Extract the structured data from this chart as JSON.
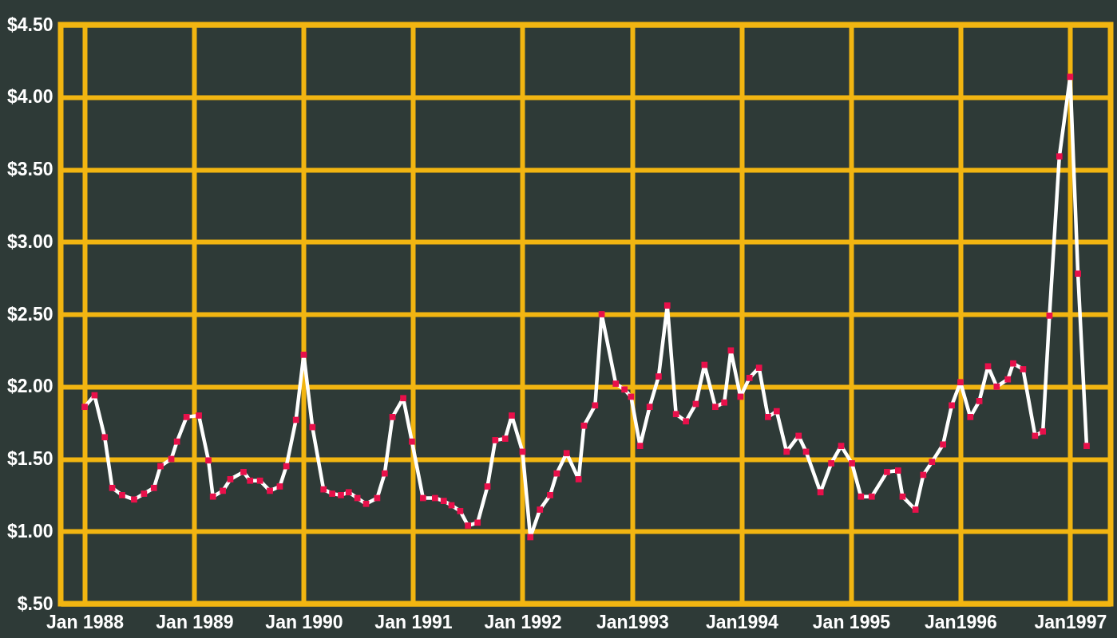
{
  "chart_data": {
    "type": "line",
    "x": [
      "1988-01-01",
      "1988-02-03",
      "1988-03-08",
      "1988-04-02",
      "1988-05-05",
      "1988-06-14",
      "1988-07-17",
      "1988-08-19",
      "1988-09-10",
      "1988-10-16",
      "1988-11-04",
      "1988-12-06",
      "1989-01-16",
      "1989-02-17",
      "1989-03-04",
      "1989-04-06",
      "1989-05-01",
      "1989-06-14",
      "1989-07-06",
      "1989-08-08",
      "1989-09-10",
      "1989-10-13",
      "1989-11-04",
      "1989-12-06",
      "1990-01-01",
      "1990-01-30",
      "1990-03-08",
      "1990-04-06",
      "1990-05-05",
      "1990-05-31",
      "1990-06-29",
      "1990-07-28",
      "1990-09-03",
      "1990-09-28",
      "1990-10-24",
      "1990-11-29",
      "1990-12-28",
      "1991-02-03",
      "1991-03-15",
      "1991-04-13",
      "1991-05-09",
      "1991-06-07",
      "1991-07-03",
      "1991-08-04",
      "1991-09-06",
      "1991-10-02",
      "1991-11-04",
      "1991-11-26",
      "1992-01-01",
      "1992-01-27",
      "1992-02-28",
      "1992-04-02",
      "1992-04-24",
      "1992-05-27",
      "1992-07-06",
      "1992-07-24",
      "1992-08-30",
      "1992-09-21",
      "1992-11-07",
      "1992-12-06",
      "1992-12-28",
      "1993-01-27",
      "1993-02-28",
      "1993-03-30",
      "1993-04-28",
      "1993-05-27",
      "1993-06-29",
      "1993-08-01",
      "1993-08-30",
      "1993-10-05",
      "1993-11-04",
      "1993-11-26",
      "1993-12-28",
      "1994-01-27",
      "1994-02-28",
      "1994-03-30",
      "1994-04-28",
      "1994-05-31",
      "1994-07-10",
      "1994-08-04",
      "1994-09-21",
      "1994-10-27",
      "1994-11-29",
      "1995-01-04",
      "1995-02-03",
      "1995-03-11",
      "1995-05-01",
      "1995-06-07",
      "1995-06-22",
      "1995-08-04",
      "1995-08-30",
      "1995-09-28",
      "1995-11-04",
      "1995-12-03",
      "1996-01-01",
      "1996-02-03",
      "1996-03-04",
      "1996-04-02",
      "1996-05-01",
      "1996-06-07",
      "1996-06-25",
      "1996-07-28",
      "1996-09-06",
      "1996-10-02",
      "1996-10-24",
      "1996-11-26",
      "1997-01-01",
      "1997-01-27",
      "1997-02-25"
    ],
    "series": [
      {
        "color": "#ffffff",
        "values": [
          1.86,
          1.94,
          1.65,
          1.3,
          1.25,
          1.22,
          1.26,
          1.3,
          1.45,
          1.5,
          1.62,
          1.79,
          1.8,
          1.49,
          1.24,
          1.28,
          1.36,
          1.41,
          1.35,
          1.35,
          1.28,
          1.31,
          1.45,
          1.77,
          2.22,
          1.72,
          1.29,
          1.26,
          1.25,
          1.27,
          1.23,
          1.19,
          1.23,
          1.4,
          1.79,
          1.92,
          1.62,
          1.23,
          1.23,
          1.21,
          1.18,
          1.14,
          1.04,
          1.06,
          1.31,
          1.63,
          1.64,
          1.8,
          1.55,
          0.96,
          1.15,
          1.25,
          1.4,
          1.54,
          1.36,
          1.73,
          1.87,
          2.5,
          2.02,
          1.98,
          1.93,
          1.59,
          1.86,
          2.07,
          2.56,
          1.81,
          1.76,
          1.88,
          2.15,
          1.86,
          1.89,
          2.25,
          1.93,
          2.06,
          2.13,
          1.79,
          1.83,
          1.55,
          1.66,
          1.55,
          1.27,
          1.47,
          1.59,
          1.47,
          1.24,
          1.24,
          1.41,
          1.42,
          1.24,
          1.15,
          1.39,
          1.48,
          1.6,
          1.87,
          2.03,
          1.79,
          1.9,
          2.14,
          2.0,
          2.05,
          2.16,
          2.12,
          1.66,
          1.69,
          2.49,
          3.59,
          4.14,
          2.78,
          1.59
        ]
      }
    ],
    "xlim": [
      "1987-10-13",
      "1997-05-16"
    ],
    "xticks": [
      {
        "value": "1988-01-01",
        "label": "Jan 1988"
      },
      {
        "value": "1989-01-01",
        "label": "Jan 1989"
      },
      {
        "value": "1990-01-01",
        "label": "Jan 1990"
      },
      {
        "value": "1991-01-01",
        "label": "Jan 1991"
      },
      {
        "value": "1992-01-01",
        "label": "Jan 1992"
      },
      {
        "value": "1993-01-01",
        "label": "Jan1993"
      },
      {
        "value": "1994-01-01",
        "label": "Jan1994"
      },
      {
        "value": "1995-01-01",
        "label": "Jan 1995"
      },
      {
        "value": "1996-01-01",
        "label": "Jan1996"
      },
      {
        "value": "1997-01-01",
        "label": "Jan1997"
      }
    ],
    "ylim": [
      0.5,
      4.5
    ],
    "yticks": [
      {
        "value": 0.5,
        "label": "$.50"
      },
      {
        "value": 1.0,
        "label": "$1.00"
      },
      {
        "value": 1.5,
        "label": "$1.50"
      },
      {
        "value": 2.0,
        "label": "$2.00"
      },
      {
        "value": 2.5,
        "label": "$2.50"
      },
      {
        "value": 3.0,
        "label": "$3.00"
      },
      {
        "value": 3.5,
        "label": "$3.50"
      },
      {
        "value": 4.0,
        "label": "$4.00"
      },
      {
        "value": 4.5,
        "label": "$4.50"
      }
    ],
    "grid": true,
    "marker": "square",
    "line_style": "solid"
  }
}
